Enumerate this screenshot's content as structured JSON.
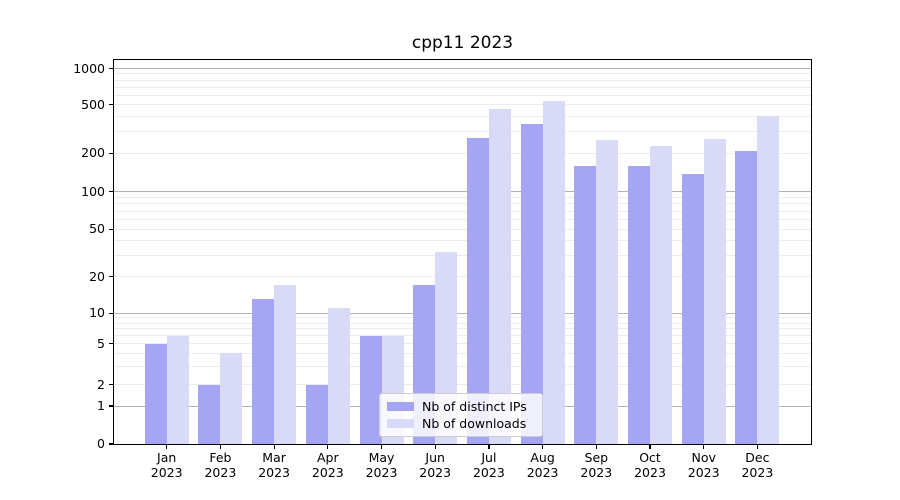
{
  "chart_data": {
    "type": "bar",
    "title": "cpp11 2023",
    "categories": [
      "Jan",
      "Feb",
      "Mar",
      "Apr",
      "May",
      "Jun",
      "Jul",
      "Aug",
      "Sep",
      "Oct",
      "Nov",
      "Dec"
    ],
    "xtick_year": "2023",
    "series": [
      {
        "name": "Nb of distinct IPs",
        "color": "#a5a5f5",
        "values": [
          5,
          2,
          13,
          2,
          6,
          17,
          265,
          345,
          160,
          160,
          138,
          210
        ]
      },
      {
        "name": "Nb of downloads",
        "color": "#d9d9f8",
        "values": [
          6,
          4,
          17,
          11,
          6,
          32,
          460,
          535,
          255,
          230,
          260,
          400
        ]
      }
    ],
    "yscale": "symlog",
    "ylim": [
      0,
      1000
    ],
    "ytick_labels": [
      0,
      1,
      2,
      5,
      10,
      20,
      50,
      100,
      200,
      500,
      1000
    ],
    "grid": true,
    "legend_position": "lower center",
    "colors": {
      "major_grid": "#b3b3b3",
      "minor_grid": "#ececec",
      "axis": "#000000",
      "background": "#ffffff"
    }
  }
}
